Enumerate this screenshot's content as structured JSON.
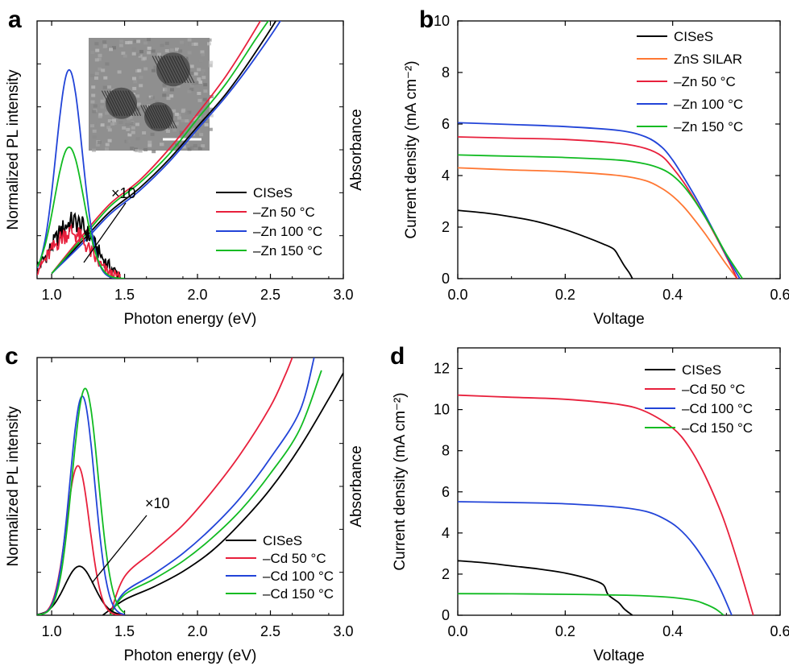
{
  "chart_data": [
    {
      "panel": "a",
      "type": "line",
      "xlabel": "Photon energy (eV)",
      "ylabel_left": "Normalized PL intensity",
      "ylabel_right": "Absorbance",
      "xlim": [
        0.9,
        3.0
      ],
      "xticks": [
        "1.0",
        "1.5",
        "2.0",
        "2.5",
        "3.0"
      ],
      "xtick_values": [
        1.0,
        1.5,
        2.0,
        2.5,
        3.0
      ],
      "annotation": "×10",
      "inset": "TEM image of nanocrystals",
      "legend": [
        "CISeS",
        "–Zn 50 °C",
        "–Zn 100 °C",
        "–Zn 150 °C"
      ],
      "colors": [
        "#000000",
        "#e8203c",
        "#2244d8",
        "#11bb22"
      ],
      "pl_series": [
        {
          "name": "CISeS",
          "noisy": true,
          "peaks": [
            [
              1.15,
              0.22,
              0.14
            ]
          ]
        },
        {
          "name": "–Zn 50 °C",
          "noisy": true,
          "peaks": [
            [
              1.13,
              0.18,
              0.13
            ]
          ]
        },
        {
          "name": "–Zn 100 °C",
          "noisy": false,
          "peaks": [
            [
              1.12,
              0.81,
              0.09
            ]
          ]
        },
        {
          "name": "–Zn 150 °C",
          "noisy": false,
          "peaks": [
            [
              1.12,
              0.51,
              0.1
            ]
          ]
        }
      ],
      "abs_series": [
        {
          "name": "CISeS",
          "x": [
            1.0,
            1.2,
            1.4,
            1.6,
            1.8,
            2.0,
            2.2,
            2.4,
            2.6,
            2.7
          ],
          "y": [
            0.02,
            0.14,
            0.26,
            0.35,
            0.46,
            0.59,
            0.72,
            0.88,
            1.06,
            1.18
          ]
        },
        {
          "name": "–Zn 50 °C",
          "x": [
            1.0,
            1.2,
            1.4,
            1.6,
            1.8,
            2.0,
            2.2,
            2.4,
            2.55,
            2.62
          ],
          "y": [
            0.02,
            0.16,
            0.29,
            0.38,
            0.5,
            0.64,
            0.79,
            0.97,
            1.12,
            1.2
          ]
        },
        {
          "name": "–Zn 100 °C",
          "x": [
            1.0,
            1.2,
            1.4,
            1.6,
            1.8,
            2.0,
            2.2,
            2.4,
            2.6,
            2.72
          ],
          "y": [
            0.02,
            0.13,
            0.25,
            0.34,
            0.45,
            0.58,
            0.71,
            0.86,
            1.03,
            1.18
          ]
        },
        {
          "name": "–Zn 150 °C",
          "x": [
            1.0,
            1.2,
            1.4,
            1.6,
            1.8,
            2.0,
            2.2,
            2.4,
            2.58,
            2.67
          ],
          "y": [
            0.02,
            0.15,
            0.28,
            0.37,
            0.48,
            0.62,
            0.76,
            0.93,
            1.08,
            1.18
          ]
        }
      ]
    },
    {
      "panel": "b",
      "type": "line",
      "xlabel": "Voltage",
      "ylabel": "Current density (mA cm⁻²)",
      "xlim": [
        0,
        0.6
      ],
      "ylim": [
        0,
        10
      ],
      "xticks": [
        "0.0",
        "0.2",
        "0.4",
        "0.6"
      ],
      "xtick_values": [
        0.0,
        0.2,
        0.4,
        0.6
      ],
      "yticks": [
        "0",
        "2",
        "4",
        "6",
        "8",
        "10"
      ],
      "ytick_values": [
        0,
        2,
        4,
        6,
        8,
        10
      ],
      "legend": [
        "CISeS",
        "ZnS SILAR",
        "–Zn 50 °C",
        "–Zn 100 °C",
        "–Zn 150 °C"
      ],
      "colors": [
        "#000000",
        "#ff7733",
        "#e8203c",
        "#2244d8",
        "#11bb22"
      ],
      "series": [
        {
          "name": "CISeS",
          "x": [
            0,
            0.05,
            0.1,
            0.15,
            0.2,
            0.24,
            0.27,
            0.29,
            0.3,
            0.31,
            0.32,
            0.325
          ],
          "y": [
            2.65,
            2.55,
            2.4,
            2.2,
            1.9,
            1.6,
            1.35,
            1.15,
            0.85,
            0.5,
            0.2,
            0.0
          ]
        },
        {
          "name": "ZnS SILAR",
          "x": [
            0,
            0.1,
            0.2,
            0.3,
            0.35,
            0.38,
            0.4,
            0.42,
            0.44,
            0.46,
            0.48,
            0.5,
            0.52
          ],
          "y": [
            4.3,
            4.22,
            4.15,
            4.0,
            3.8,
            3.5,
            3.2,
            2.8,
            2.3,
            1.75,
            1.15,
            0.55,
            0.0
          ]
        },
        {
          "name": "–Zn 50 °C",
          "x": [
            0,
            0.1,
            0.2,
            0.3,
            0.35,
            0.38,
            0.4,
            0.42,
            0.44,
            0.46,
            0.48,
            0.5,
            0.52
          ],
          "y": [
            5.5,
            5.45,
            5.4,
            5.25,
            5.05,
            4.75,
            4.3,
            3.75,
            3.1,
            2.4,
            1.65,
            0.85,
            0.0
          ]
        },
        {
          "name": "–Zn 100 °C",
          "x": [
            0,
            0.1,
            0.2,
            0.3,
            0.35,
            0.38,
            0.4,
            0.42,
            0.44,
            0.46,
            0.48,
            0.5,
            0.525
          ],
          "y": [
            6.05,
            5.98,
            5.9,
            5.75,
            5.5,
            5.1,
            4.6,
            3.95,
            3.25,
            2.5,
            1.7,
            0.9,
            0.0
          ]
        },
        {
          "name": "–Zn 150 °C",
          "x": [
            0,
            0.1,
            0.2,
            0.3,
            0.35,
            0.38,
            0.4,
            0.42,
            0.44,
            0.46,
            0.48,
            0.5,
            0.53
          ],
          "y": [
            4.8,
            4.75,
            4.7,
            4.6,
            4.45,
            4.25,
            4.0,
            3.6,
            3.05,
            2.4,
            1.7,
            0.95,
            0.0
          ]
        }
      ]
    },
    {
      "panel": "c",
      "type": "line",
      "xlabel": "Photon energy (eV)",
      "ylabel_left": "Normalized PL intensity",
      "ylabel_right": "Absorbance",
      "xlim": [
        0.9,
        3.0
      ],
      "xticks": [
        "1.0",
        "1.5",
        "2.0",
        "2.5",
        "3.0"
      ],
      "xtick_values": [
        1.0,
        1.5,
        2.0,
        2.5,
        3.0
      ],
      "annotation": "×10",
      "legend": [
        "CISeS",
        "–Cd 50 °C",
        "–Cd 100 °C",
        "–Cd 150 °C"
      ],
      "colors": [
        "#000000",
        "#e8203c",
        "#2244d8",
        "#11bb22"
      ],
      "pl_series": [
        {
          "name": "CISeS",
          "noisy": false,
          "peaks": [
            [
              1.19,
              0.19,
              0.1
            ]
          ]
        },
        {
          "name": "–Cd 50 °C",
          "noisy": false,
          "peaks": [
            [
              1.18,
              0.58,
              0.08
            ]
          ]
        },
        {
          "name": "–Cd 100 °C",
          "noisy": false,
          "peaks": [
            [
              1.21,
              0.85,
              0.085
            ]
          ]
        },
        {
          "name": "–Cd 150 °C",
          "noisy": false,
          "peaks": [
            [
              1.23,
              0.88,
              0.09
            ]
          ]
        }
      ],
      "abs_series": [
        {
          "name": "CISeS",
          "x": [
            1.35,
            1.5,
            1.7,
            1.9,
            2.1,
            2.3,
            2.5,
            2.7,
            2.9,
            3.0
          ],
          "y": [
            0.0,
            0.06,
            0.11,
            0.17,
            0.25,
            0.36,
            0.49,
            0.65,
            0.84,
            0.94
          ]
        },
        {
          "name": "–Cd 50 °C",
          "x": [
            1.4,
            1.5,
            1.7,
            1.9,
            2.1,
            2.3,
            2.5,
            2.6,
            2.65
          ],
          "y": [
            0.0,
            0.15,
            0.25,
            0.35,
            0.48,
            0.63,
            0.81,
            0.93,
            1.0
          ]
        },
        {
          "name": "–Cd 100 °C",
          "x": [
            1.4,
            1.5,
            1.7,
            1.9,
            2.1,
            2.3,
            2.5,
            2.7,
            2.8
          ],
          "y": [
            0.0,
            0.09,
            0.16,
            0.24,
            0.34,
            0.46,
            0.61,
            0.79,
            1.0
          ]
        },
        {
          "name": "–Cd 150 °C",
          "x": [
            1.4,
            1.5,
            1.7,
            1.9,
            2.1,
            2.3,
            2.5,
            2.7,
            2.85
          ],
          "y": [
            0.0,
            0.08,
            0.14,
            0.21,
            0.3,
            0.41,
            0.55,
            0.72,
            0.95
          ]
        }
      ]
    },
    {
      "panel": "d",
      "type": "line",
      "xlabel": "Voltage",
      "ylabel": "Current density (mA cm⁻²)",
      "xlim": [
        0,
        0.6
      ],
      "ylim": [
        0,
        13
      ],
      "xticks": [
        "0.0",
        "0.2",
        "0.4",
        "0.6"
      ],
      "xtick_values": [
        0.0,
        0.2,
        0.4,
        0.6
      ],
      "yticks": [
        "0",
        "2",
        "4",
        "6",
        "8",
        "10",
        "12"
      ],
      "ytick_values": [
        0,
        2,
        4,
        6,
        8,
        10,
        12
      ],
      "legend": [
        "CISeS",
        "–Cd 50 °C",
        "–Cd 100 °C",
        "–Cd 150 °C"
      ],
      "colors": [
        "#000000",
        "#e8203c",
        "#2244d8",
        "#11bb22"
      ],
      "series": [
        {
          "name": "CISeS",
          "x": [
            0,
            0.05,
            0.1,
            0.15,
            0.2,
            0.24,
            0.27,
            0.28,
            0.3,
            0.31,
            0.325
          ],
          "y": [
            2.65,
            2.55,
            2.4,
            2.25,
            2.05,
            1.8,
            1.5,
            1.0,
            0.6,
            0.3,
            0.0
          ]
        },
        {
          "name": "–Cd 50 °C",
          "x": [
            0,
            0.1,
            0.2,
            0.3,
            0.35,
            0.4,
            0.43,
            0.46,
            0.49,
            0.51,
            0.53,
            0.55
          ],
          "y": [
            10.7,
            10.6,
            10.5,
            10.25,
            9.9,
            9.1,
            8.2,
            6.8,
            5.0,
            3.5,
            1.8,
            0.0
          ]
        },
        {
          "name": "–Cd 100 °C",
          "x": [
            0,
            0.1,
            0.2,
            0.3,
            0.35,
            0.38,
            0.41,
            0.44,
            0.47,
            0.49,
            0.51
          ],
          "y": [
            5.52,
            5.48,
            5.42,
            5.25,
            5.05,
            4.75,
            4.25,
            3.4,
            2.2,
            1.2,
            0.0
          ]
        },
        {
          "name": "–Cd 150 °C",
          "x": [
            0,
            0.1,
            0.2,
            0.3,
            0.35,
            0.4,
            0.44,
            0.46,
            0.48,
            0.495
          ],
          "y": [
            1.05,
            1.04,
            1.02,
            0.98,
            0.94,
            0.86,
            0.72,
            0.55,
            0.3,
            0.0
          ]
        }
      ]
    }
  ]
}
